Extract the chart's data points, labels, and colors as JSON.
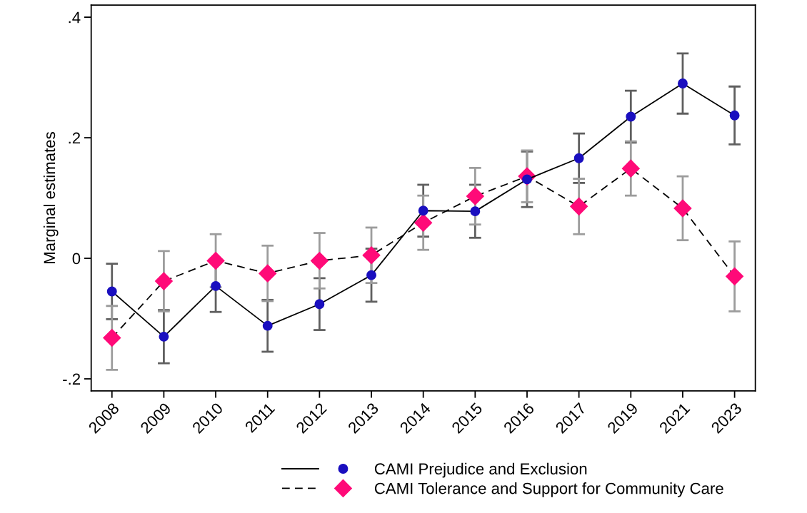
{
  "chart_data": {
    "type": "line",
    "ylabel": "Marginal estimates",
    "categories": [
      "2008",
      "2009",
      "2010",
      "2011",
      "2012",
      "2013",
      "2014",
      "2015",
      "2016",
      "2017",
      "2019",
      "2021",
      "2023"
    ],
    "series": [
      {
        "name": "CAMI Prejudice and Exclusion",
        "color": "#1a0fbf",
        "marker": "circle",
        "line_style": "solid",
        "values": [
          -0.055,
          -0.13,
          -0.046,
          -0.112,
          -0.076,
          -0.028,
          0.079,
          0.078,
          0.131,
          0.166,
          0.235,
          0.29,
          0.237
        ],
        "errors": [
          0.046,
          0.044,
          0.043,
          0.043,
          0.043,
          0.044,
          0.043,
          0.044,
          0.046,
          0.041,
          0.043,
          0.05,
          0.048
        ]
      },
      {
        "name": "CAMI Tolerance and Support for Community Care",
        "color": "#ff0a78",
        "marker": "diamond",
        "line_style": "dashed",
        "values": [
          -0.132,
          -0.038,
          -0.004,
          -0.025,
          -0.004,
          0.005,
          0.059,
          0.103,
          0.136,
          0.086,
          0.149,
          0.083,
          -0.03
        ],
        "errors": [
          0.053,
          0.05,
          0.044,
          0.046,
          0.046,
          0.046,
          0.045,
          0.047,
          0.043,
          0.046,
          0.045,
          0.053,
          0.058
        ]
      }
    ],
    "ylim": [
      -0.22,
      0.42
    ],
    "yticks": [
      {
        "value": -0.2,
        "label": "-.2"
      },
      {
        "value": 0,
        "label": "0"
      },
      {
        "value": 0.2,
        "label": ".2"
      },
      {
        "value": 0.4,
        "label": ".4"
      }
    ],
    "grid": false,
    "legend": "bottom"
  }
}
